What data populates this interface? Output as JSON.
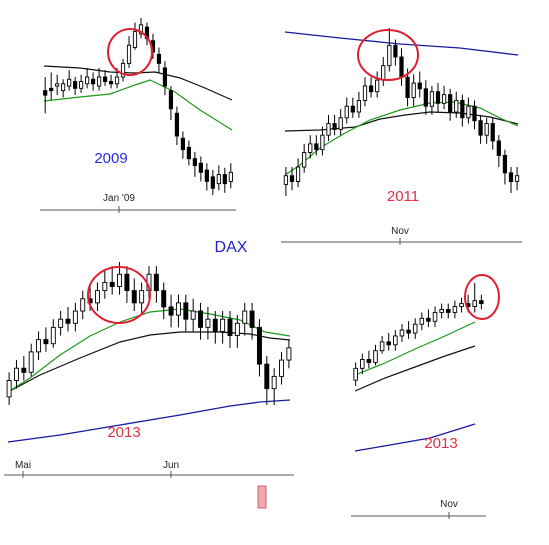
{
  "title": "DAX",
  "colors": {
    "title": "#2222cc",
    "year_blue": "#2a2ae0",
    "year_red": "#e0304a",
    "fast_ma": "#1a9a1a",
    "slow_ma": "#111111",
    "long_ma": "#1a1aa0",
    "circle": "#e02030",
    "candle": "#000000",
    "axis": "#555555",
    "volume_bar": "#f4a8b0"
  },
  "chart_data": [
    {
      "type": "candlestick",
      "label": "2009",
      "label_color": "year_blue",
      "xticks": [
        "Jan '09"
      ],
      "series": [
        "fast_ma",
        "slow_ma"
      ],
      "highlight": "circled rounded-top candles",
      "candles": [
        [
          60,
          58,
          66,
          50
        ],
        [
          61,
          60,
          68,
          56
        ],
        [
          62,
          63,
          67,
          58
        ],
        [
          60,
          63,
          65,
          57
        ],
        [
          62,
          65,
          69,
          60
        ],
        [
          64,
          61,
          66,
          58
        ],
        [
          61,
          64,
          67,
          59
        ],
        [
          63,
          66,
          70,
          61
        ],
        [
          65,
          63,
          68,
          60
        ],
        [
          62,
          66,
          70,
          60
        ],
        [
          66,
          64,
          69,
          62
        ],
        [
          64,
          63,
          67,
          61
        ],
        [
          63,
          66,
          70,
          61
        ],
        [
          66,
          72,
          74,
          64
        ],
        [
          72,
          80,
          84,
          70
        ],
        [
          79,
          86,
          90,
          78
        ],
        [
          85,
          89,
          92,
          83
        ],
        [
          88,
          83,
          90,
          80
        ],
        [
          82,
          77,
          85,
          74
        ],
        [
          76,
          72,
          79,
          68
        ],
        [
          70,
          62,
          73,
          58
        ],
        [
          60,
          52,
          62,
          47
        ],
        [
          50,
          40,
          53,
          36
        ],
        [
          39,
          34,
          42,
          30
        ],
        [
          35,
          30,
          38,
          27
        ],
        [
          30,
          27,
          33,
          22
        ],
        [
          28,
          24,
          31,
          20
        ],
        [
          25,
          20,
          28,
          16
        ],
        [
          22,
          17,
          25,
          14
        ],
        [
          19,
          23,
          27,
          16
        ],
        [
          23,
          19,
          26,
          15
        ],
        [
          20,
          24,
          28,
          17
        ]
      ]
    },
    {
      "type": "candlestick",
      "label": "2011",
      "label_color": "year_red",
      "xticks": [
        "Nov"
      ],
      "series": [
        "fast_ma",
        "slow_ma",
        "long_ma"
      ],
      "highlight": "circled rounded-top candles",
      "candles": [
        [
          30,
          33,
          36,
          26
        ],
        [
          33,
          31,
          36,
          28
        ],
        [
          31,
          36,
          39,
          29
        ],
        [
          36,
          41,
          44,
          34
        ],
        [
          41,
          44,
          47,
          39
        ],
        [
          44,
          42,
          47,
          40
        ],
        [
          42,
          47,
          50,
          40
        ],
        [
          47,
          51,
          54,
          45
        ],
        [
          51,
          49,
          54,
          47
        ],
        [
          49,
          53,
          56,
          47
        ],
        [
          53,
          57,
          60,
          51
        ],
        [
          57,
          55,
          60,
          53
        ],
        [
          55,
          59,
          62,
          53
        ],
        [
          59,
          64,
          67,
          57
        ],
        [
          64,
          62,
          67,
          60
        ],
        [
          62,
          66,
          69,
          60
        ],
        [
          66,
          71,
          74,
          64
        ],
        [
          71,
          78,
          84,
          69
        ],
        [
          78,
          74,
          80,
          71
        ],
        [
          74,
          67,
          77,
          64
        ],
        [
          67,
          60,
          70,
          57
        ],
        [
          60,
          65,
          68,
          57
        ],
        [
          65,
          63,
          69,
          60
        ],
        [
          63,
          57,
          66,
          54
        ],
        [
          57,
          62,
          64,
          54
        ],
        [
          62,
          58,
          65,
          55
        ],
        [
          58,
          61,
          64,
          56
        ],
        [
          61,
          55,
          63,
          52
        ],
        [
          55,
          59,
          62,
          53
        ],
        [
          59,
          53,
          61,
          50
        ],
        [
          53,
          57,
          60,
          51
        ],
        [
          57,
          52,
          59,
          49
        ],
        [
          52,
          47,
          54,
          44
        ],
        [
          47,
          51,
          53,
          44
        ],
        [
          51,
          45,
          53,
          42
        ],
        [
          45,
          40,
          47,
          36
        ],
        [
          40,
          34,
          42,
          30
        ],
        [
          34,
          31,
          36,
          27
        ],
        [
          31,
          33,
          36,
          28
        ]
      ]
    },
    {
      "type": "candlestick",
      "label": "2013",
      "label_color": "year_red",
      "xticks": [
        "Mai",
        "Jun"
      ],
      "series": [
        "fast_ma",
        "slow_ma",
        "long_ma"
      ],
      "highlight": "circled rounded-top candles",
      "candles": [
        [
          40,
          44,
          46,
          38
        ],
        [
          44,
          47,
          49,
          42
        ],
        [
          47,
          46,
          50,
          44
        ],
        [
          46,
          51,
          53,
          45
        ],
        [
          51,
          54,
          56,
          49
        ],
        [
          54,
          53,
          57,
          51
        ],
        [
          53,
          57,
          59,
          52
        ],
        [
          57,
          59,
          61,
          55
        ],
        [
          59,
          58,
          62,
          56
        ],
        [
          58,
          61,
          63,
          56
        ],
        [
          61,
          64,
          66,
          59
        ],
        [
          64,
          63,
          67,
          61
        ],
        [
          63,
          66,
          68,
          61
        ],
        [
          66,
          68,
          71,
          64
        ],
        [
          68,
          67,
          72,
          65
        ],
        [
          67,
          70,
          73,
          65
        ],
        [
          70,
          66,
          72,
          63
        ],
        [
          66,
          63,
          69,
          61
        ],
        [
          63,
          66,
          68,
          60
        ],
        [
          66,
          70,
          72,
          64
        ],
        [
          70,
          66,
          72,
          63
        ],
        [
          66,
          62,
          68,
          59
        ],
        [
          62,
          60,
          65,
          57
        ],
        [
          60,
          63,
          65,
          57
        ],
        [
          63,
          59,
          65,
          56
        ],
        [
          59,
          61,
          64,
          56
        ],
        [
          61,
          57,
          63,
          54
        ],
        [
          57,
          59,
          62,
          54
        ],
        [
          59,
          56,
          61,
          53
        ],
        [
          56,
          59,
          61,
          53
        ],
        [
          59,
          55,
          61,
          52
        ],
        [
          55,
          58,
          60,
          52
        ],
        [
          58,
          61,
          63,
          55
        ],
        [
          61,
          57,
          63,
          54
        ],
        [
          57,
          48,
          59,
          45
        ],
        [
          48,
          42,
          50,
          38
        ],
        [
          42,
          45,
          47,
          38
        ],
        [
          45,
          49,
          51,
          43
        ],
        [
          49,
          52,
          54,
          47
        ]
      ]
    },
    {
      "type": "candlestick",
      "label": "2013",
      "label_color": "year_red",
      "xticks": [
        "Nov"
      ],
      "series": [
        "fast_ma",
        "slow_ma",
        "long_ma"
      ],
      "highlight": "circled rounded-top candles",
      "candles": [
        [
          40,
          44,
          46,
          38
        ],
        [
          44,
          47,
          49,
          42
        ],
        [
          47,
          46,
          50,
          44
        ],
        [
          46,
          50,
          52,
          45
        ],
        [
          50,
          53,
          55,
          49
        ],
        [
          53,
          52,
          56,
          50
        ],
        [
          52,
          55,
          57,
          50
        ],
        [
          55,
          57,
          59,
          53
        ],
        [
          57,
          56,
          60,
          54
        ],
        [
          56,
          59,
          61,
          54
        ],
        [
          59,
          61,
          63,
          57
        ],
        [
          61,
          60,
          64,
          58
        ],
        [
          60,
          63,
          65,
          58
        ],
        [
          63,
          64,
          66,
          61
        ],
        [
          64,
          63,
          66,
          61
        ],
        [
          63,
          65,
          67,
          61
        ],
        [
          65,
          66,
          68,
          63
        ],
        [
          66,
          65,
          69,
          63
        ],
        [
          65,
          67,
          73,
          63
        ],
        [
          67,
          66,
          69,
          64
        ]
      ]
    }
  ]
}
